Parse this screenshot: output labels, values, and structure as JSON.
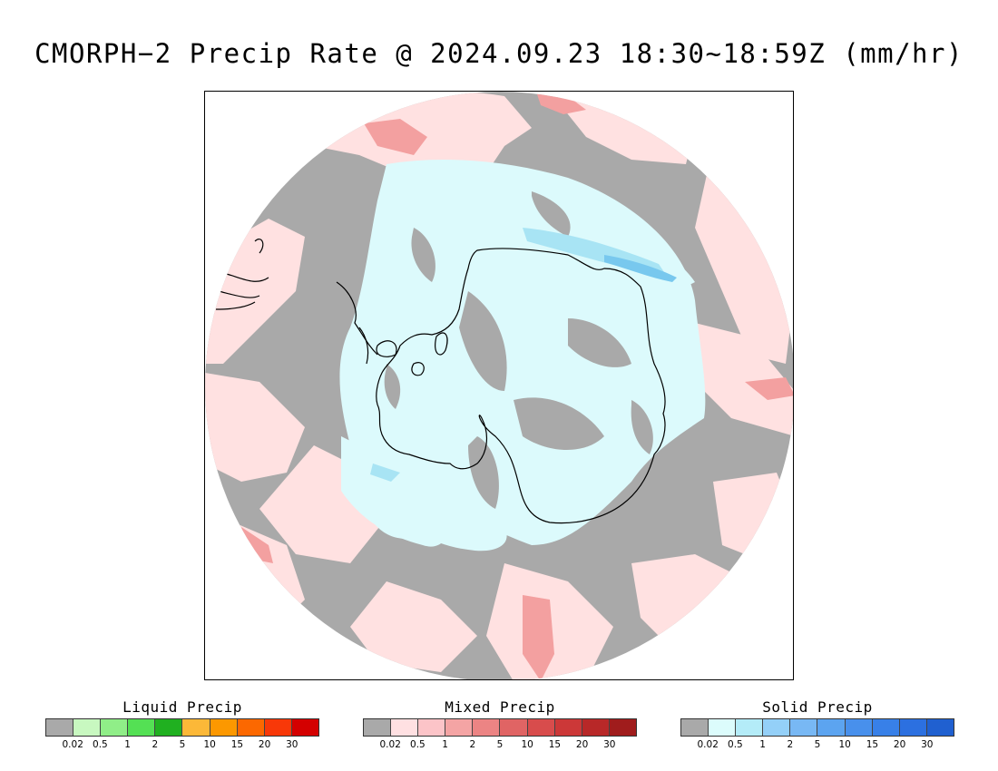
{
  "title": "CMORPH−2 Precip Rate @ 2024.09.23 18:30~18:59Z (mm/hr)",
  "map": {
    "projection": "south-polar-stereographic",
    "colors": {
      "no_precip_background": "#a9a9a9",
      "light_mixed": "#ffe1e1",
      "light_solid": "#dcfafc",
      "moderate_mixed": "#f3a0a0",
      "moderate_solid": "#a8e4f4",
      "heavier_solid": "#78c8ee",
      "coastline": "#000000"
    }
  },
  "legends": [
    {
      "id": "liquid",
      "title": "Liquid Precip",
      "colors": [
        "#a9a9a9",
        "#c8f8c0",
        "#90ee88",
        "#54e054",
        "#20b020",
        "#fcb838",
        "#fc9800",
        "#fc6800",
        "#f83808",
        "#d40000"
      ],
      "ticks": [
        "0.02",
        "0.5",
        "1",
        "2",
        "5",
        "10",
        "15",
        "20",
        "30"
      ]
    },
    {
      "id": "mixed",
      "title": "Mixed Precip",
      "colors": [
        "#a9a9a9",
        "#ffe0e2",
        "#fcc4c8",
        "#f4a4a4",
        "#ec8484",
        "#e06464",
        "#d84c4c",
        "#cc3838",
        "#b82828",
        "#a01c1c"
      ],
      "ticks": [
        "0.02",
        "0.5",
        "1",
        "2",
        "5",
        "10",
        "15",
        "20",
        "30"
      ]
    },
    {
      "id": "solid",
      "title": "Solid Precip",
      "colors": [
        "#a9a9a9",
        "#dcfcfc",
        "#b4ecf8",
        "#94d0f8",
        "#78b8f4",
        "#5ca4f0",
        "#4890ec",
        "#3880e8",
        "#2c70e0",
        "#2060d0"
      ],
      "ticks": [
        "0.02",
        "0.5",
        "1",
        "2",
        "5",
        "10",
        "15",
        "20",
        "30"
      ]
    }
  ]
}
